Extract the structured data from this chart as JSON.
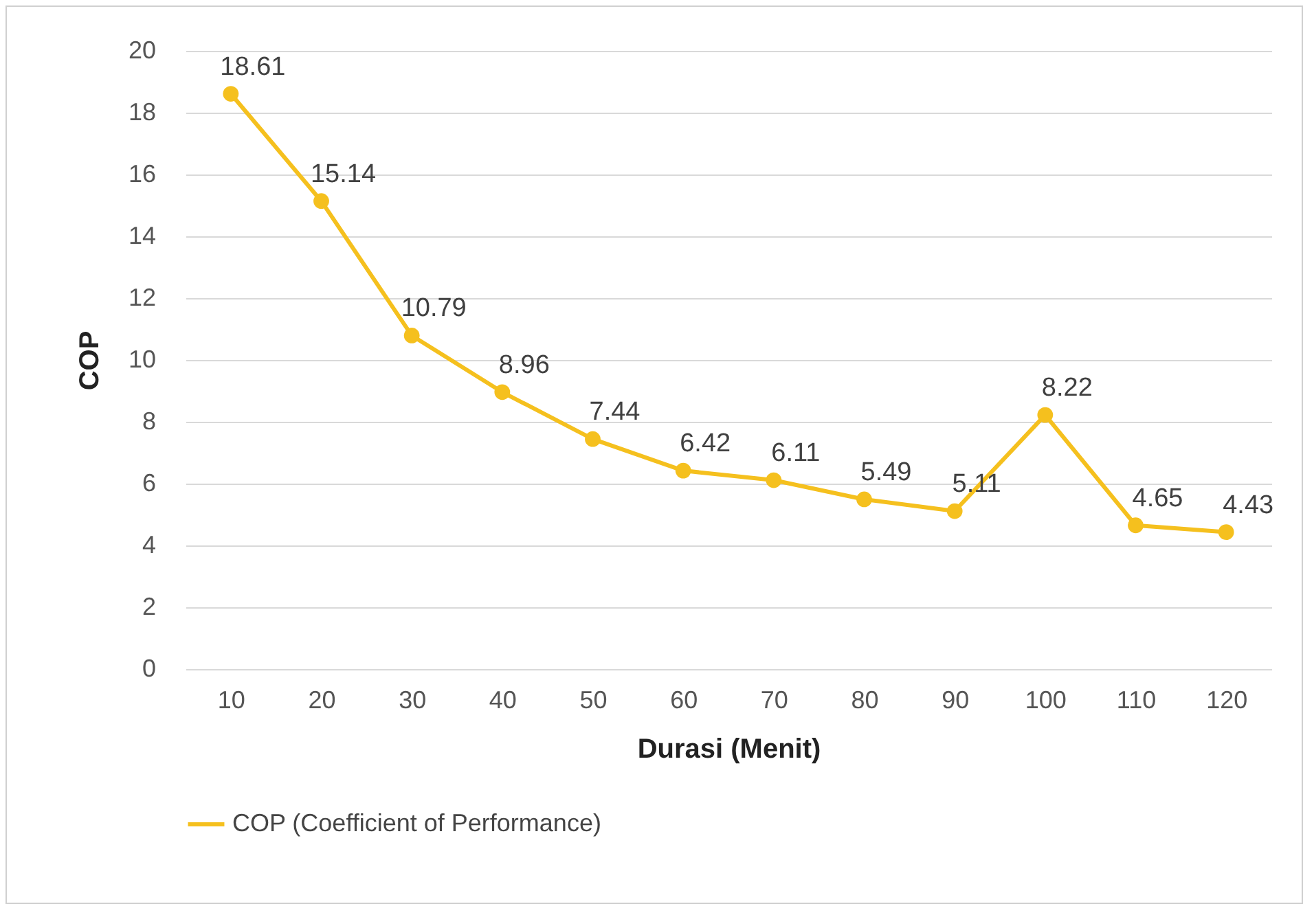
{
  "chart_data": {
    "type": "line",
    "xlabel": "Durasi (Menit)",
    "ylabel": "COP",
    "categories": [
      "10",
      "20",
      "30",
      "40",
      "50",
      "60",
      "70",
      "80",
      "90",
      "100",
      "110",
      "120"
    ],
    "series": [
      {
        "name": "COP (Coefficient of Performance)",
        "color": "#f5c01e",
        "values": [
          18.61,
          15.14,
          10.79,
          8.96,
          7.44,
          6.42,
          6.11,
          5.49,
          5.11,
          8.22,
          4.65,
          4.43
        ]
      }
    ],
    "ylim": [
      0,
      20
    ],
    "yticks": [
      0,
      2,
      4,
      6,
      8,
      10,
      12,
      14,
      16,
      18,
      20
    ],
    "grid": "y",
    "legend": "bottom",
    "marker": "circle",
    "line_style": "solid",
    "data_labels": true
  }
}
